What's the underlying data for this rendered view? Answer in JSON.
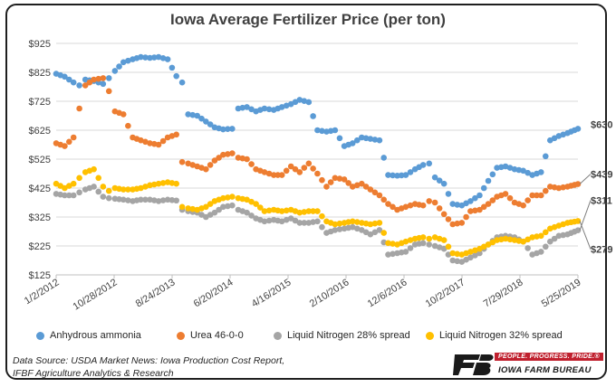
{
  "chart_data": {
    "type": "scatter",
    "title": "Iowa Average Fertilizer Price (per ton)",
    "xlabel": "",
    "ylabel": "",
    "x_tick_labels": [
      "1/2/2012",
      "10/28/2012",
      "8/24/2013",
      "6/20/2014",
      "4/16/2015",
      "2/10/2016",
      "12/6/2016",
      "10/2/2017",
      "7/29/2018",
      "5/25/2019"
    ],
    "x_ticks": [
      "2012-01-02",
      "2012-10-28",
      "2013-08-24",
      "2014-06-20",
      "2015-04-16",
      "2016-02-10",
      "2016-12-06",
      "2017-10-02",
      "2018-07-29",
      "2019-05-25"
    ],
    "xlim": [
      "2012-01-02",
      "2019-05-25"
    ],
    "y_tick_labels": [
      "$125",
      "$225",
      "$325",
      "$425",
      "$525",
      "$625",
      "$725",
      "$825",
      "$925"
    ],
    "ylim": [
      125,
      925
    ],
    "grid": true,
    "legend_position": "bottom",
    "end_labels": [
      "$630",
      "$439",
      "$311",
      "$279"
    ],
    "series": [
      {
        "name": "Anhydrous ammonia",
        "color": "#5b9bd5",
        "points": [
          [
            "2012-01-02",
            820
          ],
          [
            "2012-02-15",
            810
          ],
          [
            "2012-04-01",
            790
          ],
          [
            "2012-05-01",
            780
          ],
          [
            "2012-06-01",
            800
          ],
          [
            "2012-07-15",
            795
          ],
          [
            "2012-09-01",
            785
          ],
          [
            "2012-10-01",
            805
          ],
          [
            "2012-11-01",
            830
          ],
          [
            "2012-12-15",
            860
          ],
          [
            "2013-02-01",
            870
          ],
          [
            "2013-03-15",
            878
          ],
          [
            "2013-05-01",
            875
          ],
          [
            "2013-06-15",
            878
          ],
          [
            "2013-08-01",
            870
          ],
          [
            "2013-09-15",
            812
          ],
          [
            "2013-10-15",
            790
          ],
          [
            "2013-11-15",
            680
          ],
          [
            "2014-01-01",
            675
          ],
          [
            "2014-02-15",
            655
          ],
          [
            "2014-04-01",
            635
          ],
          [
            "2014-05-15",
            628
          ],
          [
            "2014-07-01",
            630
          ],
          [
            "2014-08-01",
            700
          ],
          [
            "2014-09-15",
            705
          ],
          [
            "2014-11-01",
            690
          ],
          [
            "2014-12-15",
            700
          ],
          [
            "2015-02-01",
            695
          ],
          [
            "2015-03-15",
            705
          ],
          [
            "2015-05-01",
            715
          ],
          [
            "2015-06-15",
            730
          ],
          [
            "2015-08-01",
            722
          ],
          [
            "2015-09-15",
            625
          ],
          [
            "2015-11-01",
            620
          ],
          [
            "2015-12-15",
            625
          ],
          [
            "2016-02-01",
            570
          ],
          [
            "2016-03-15",
            580
          ],
          [
            "2016-05-01",
            600
          ],
          [
            "2016-06-15",
            595
          ],
          [
            "2016-08-01",
            590
          ],
          [
            "2016-09-15",
            470
          ],
          [
            "2016-11-01",
            468
          ],
          [
            "2016-12-15",
            470
          ],
          [
            "2017-02-01",
            490
          ],
          [
            "2017-03-15",
            505
          ],
          [
            "2017-04-15",
            510
          ],
          [
            "2017-05-15",
            462
          ],
          [
            "2017-07-01",
            440
          ],
          [
            "2017-08-15",
            370
          ],
          [
            "2017-10-01",
            365
          ],
          [
            "2017-11-15",
            380
          ],
          [
            "2018-01-01",
            400
          ],
          [
            "2018-02-15",
            450
          ],
          [
            "2018-04-01",
            495
          ],
          [
            "2018-05-15",
            500
          ],
          [
            "2018-07-01",
            490
          ],
          [
            "2018-08-15",
            485
          ],
          [
            "2018-10-01",
            470
          ],
          [
            "2018-11-15",
            480
          ],
          [
            "2019-01-01",
            590
          ],
          [
            "2019-02-15",
            605
          ],
          [
            "2019-04-01",
            615
          ],
          [
            "2019-05-25",
            630
          ]
        ]
      },
      {
        "name": "Urea 46-0-0",
        "color": "#ed7d31",
        "points": [
          [
            "2012-01-02",
            580
          ],
          [
            "2012-02-15",
            570
          ],
          [
            "2012-04-01",
            600
          ],
          [
            "2012-05-01",
            700
          ],
          [
            "2012-06-01",
            780
          ],
          [
            "2012-07-15",
            800
          ],
          [
            "2012-09-01",
            805
          ],
          [
            "2012-10-01",
            760
          ],
          [
            "2012-11-01",
            690
          ],
          [
            "2012-12-15",
            680
          ],
          [
            "2013-02-01",
            600
          ],
          [
            "2013-03-15",
            590
          ],
          [
            "2013-05-01",
            580
          ],
          [
            "2013-06-15",
            575
          ],
          [
            "2013-08-01",
            600
          ],
          [
            "2013-09-15",
            610
          ],
          [
            "2013-10-15",
            515
          ],
          [
            "2013-11-15",
            510
          ],
          [
            "2014-01-01",
            500
          ],
          [
            "2014-02-15",
            490
          ],
          [
            "2014-04-01",
            520
          ],
          [
            "2014-05-15",
            540
          ],
          [
            "2014-07-01",
            545
          ],
          [
            "2014-08-01",
            530
          ],
          [
            "2014-09-15",
            525
          ],
          [
            "2014-11-01",
            490
          ],
          [
            "2014-12-15",
            480
          ],
          [
            "2015-02-01",
            470
          ],
          [
            "2015-03-15",
            470
          ],
          [
            "2015-05-01",
            500
          ],
          [
            "2015-06-15",
            480
          ],
          [
            "2015-08-01",
            510
          ],
          [
            "2015-09-15",
            475
          ],
          [
            "2015-11-01",
            430
          ],
          [
            "2015-12-15",
            460
          ],
          [
            "2016-02-01",
            455
          ],
          [
            "2016-03-15",
            430
          ],
          [
            "2016-05-01",
            440
          ],
          [
            "2016-06-15",
            420
          ],
          [
            "2016-08-01",
            400
          ],
          [
            "2016-09-15",
            370
          ],
          [
            "2016-11-01",
            350
          ],
          [
            "2016-12-15",
            360
          ],
          [
            "2017-02-01",
            370
          ],
          [
            "2017-03-15",
            365
          ],
          [
            "2017-04-15",
            380
          ],
          [
            "2017-05-15",
            375
          ],
          [
            "2017-07-01",
            335
          ],
          [
            "2017-08-15",
            300
          ],
          [
            "2017-10-01",
            305
          ],
          [
            "2017-11-15",
            345
          ],
          [
            "2018-01-01",
            350
          ],
          [
            "2018-02-15",
            370
          ],
          [
            "2018-04-01",
            395
          ],
          [
            "2018-05-15",
            405
          ],
          [
            "2018-07-01",
            375
          ],
          [
            "2018-08-15",
            365
          ],
          [
            "2018-10-01",
            400
          ],
          [
            "2018-11-15",
            400
          ],
          [
            "2019-01-01",
            430
          ],
          [
            "2019-02-15",
            425
          ],
          [
            "2019-04-01",
            430
          ],
          [
            "2019-05-25",
            439
          ]
        ]
      },
      {
        "name": "Liquid Nitrogen 28% spread",
        "color": "#a5a5a5",
        "points": [
          [
            "2012-01-02",
            405
          ],
          [
            "2012-02-15",
            400
          ],
          [
            "2012-04-01",
            400
          ],
          [
            "2012-05-01",
            410
          ],
          [
            "2012-06-01",
            420
          ],
          [
            "2012-07-15",
            430
          ],
          [
            "2012-09-01",
            395
          ],
          [
            "2012-10-01",
            390
          ],
          [
            "2012-11-01",
            388
          ],
          [
            "2012-12-15",
            385
          ],
          [
            "2013-02-01",
            380
          ],
          [
            "2013-03-15",
            385
          ],
          [
            "2013-05-01",
            385
          ],
          [
            "2013-06-15",
            380
          ],
          [
            "2013-08-01",
            385
          ],
          [
            "2013-09-15",
            382
          ],
          [
            "2013-10-15",
            350
          ],
          [
            "2013-11-15",
            345
          ],
          [
            "2014-01-01",
            340
          ],
          [
            "2014-02-15",
            325
          ],
          [
            "2014-04-01",
            340
          ],
          [
            "2014-05-15",
            360
          ],
          [
            "2014-07-01",
            365
          ],
          [
            "2014-08-01",
            350
          ],
          [
            "2014-09-15",
            340
          ],
          [
            "2014-11-01",
            320
          ],
          [
            "2014-12-15",
            310
          ],
          [
            "2015-02-01",
            315
          ],
          [
            "2015-03-15",
            310
          ],
          [
            "2015-05-01",
            320
          ],
          [
            "2015-06-15",
            305
          ],
          [
            "2015-08-01",
            305
          ],
          [
            "2015-09-15",
            310
          ],
          [
            "2015-11-01",
            270
          ],
          [
            "2015-12-15",
            280
          ],
          [
            "2016-02-01",
            285
          ],
          [
            "2016-03-15",
            290
          ],
          [
            "2016-05-01",
            280
          ],
          [
            "2016-06-15",
            265
          ],
          [
            "2016-08-01",
            280
          ],
          [
            "2016-09-15",
            195
          ],
          [
            "2016-11-01",
            200
          ],
          [
            "2016-12-15",
            205
          ],
          [
            "2017-02-01",
            230
          ],
          [
            "2017-03-15",
            235
          ],
          [
            "2017-04-15",
            230
          ],
          [
            "2017-05-15",
            225
          ],
          [
            "2017-07-01",
            215
          ],
          [
            "2017-08-15",
            175
          ],
          [
            "2017-10-01",
            170
          ],
          [
            "2017-11-15",
            185
          ],
          [
            "2018-01-01",
            200
          ],
          [
            "2018-02-15",
            230
          ],
          [
            "2018-04-01",
            255
          ],
          [
            "2018-05-15",
            260
          ],
          [
            "2018-07-01",
            255
          ],
          [
            "2018-08-15",
            240
          ],
          [
            "2018-10-01",
            195
          ],
          [
            "2018-11-15",
            205
          ],
          [
            "2019-01-01",
            240
          ],
          [
            "2019-02-15",
            260
          ],
          [
            "2019-04-01",
            265
          ],
          [
            "2019-05-25",
            279
          ]
        ]
      },
      {
        "name": "Liquid Nitrogen 32% spread",
        "color": "#ffc000",
        "points": [
          [
            "2012-01-02",
            440
          ],
          [
            "2012-02-15",
            425
          ],
          [
            "2012-04-01",
            440
          ],
          [
            "2012-05-01",
            460
          ],
          [
            "2012-06-01",
            480
          ],
          [
            "2012-07-15",
            490
          ],
          [
            "2012-09-01",
            430
          ],
          [
            "2012-10-01",
            415
          ],
          [
            "2012-11-01",
            425
          ],
          [
            "2012-12-15",
            420
          ],
          [
            "2013-02-01",
            420
          ],
          [
            "2013-03-15",
            425
          ],
          [
            "2013-05-01",
            435
          ],
          [
            "2013-06-15",
            440
          ],
          [
            "2013-08-01",
            445
          ],
          [
            "2013-09-15",
            440
          ],
          [
            "2013-10-15",
            360
          ],
          [
            "2013-11-15",
            355
          ],
          [
            "2014-01-01",
            350
          ],
          [
            "2014-02-15",
            360
          ],
          [
            "2014-04-01",
            380
          ],
          [
            "2014-05-15",
            390
          ],
          [
            "2014-07-01",
            395
          ],
          [
            "2014-08-01",
            390
          ],
          [
            "2014-09-15",
            385
          ],
          [
            "2014-11-01",
            370
          ],
          [
            "2014-12-15",
            345
          ],
          [
            "2015-02-01",
            350
          ],
          [
            "2015-03-15",
            345
          ],
          [
            "2015-05-01",
            350
          ],
          [
            "2015-06-15",
            340
          ],
          [
            "2015-08-01",
            345
          ],
          [
            "2015-09-15",
            345
          ],
          [
            "2015-11-01",
            310
          ],
          [
            "2015-12-15",
            300
          ],
          [
            "2016-02-01",
            305
          ],
          [
            "2016-03-15",
            310
          ],
          [
            "2016-05-01",
            305
          ],
          [
            "2016-06-15",
            300
          ],
          [
            "2016-08-01",
            305
          ],
          [
            "2016-09-15",
            235
          ],
          [
            "2016-11-01",
            230
          ],
          [
            "2016-12-15",
            240
          ],
          [
            "2017-02-01",
            250
          ],
          [
            "2017-03-15",
            255
          ],
          [
            "2017-04-15",
            250
          ],
          [
            "2017-05-15",
            255
          ],
          [
            "2017-07-01",
            245
          ],
          [
            "2017-08-15",
            200
          ],
          [
            "2017-10-01",
            195
          ],
          [
            "2017-11-15",
            205
          ],
          [
            "2018-01-01",
            215
          ],
          [
            "2018-02-15",
            230
          ],
          [
            "2018-04-01",
            245
          ],
          [
            "2018-05-15",
            250
          ],
          [
            "2018-07-01",
            245
          ],
          [
            "2018-08-15",
            240
          ],
          [
            "2018-10-01",
            255
          ],
          [
            "2018-11-15",
            260
          ],
          [
            "2019-01-01",
            285
          ],
          [
            "2019-02-15",
            295
          ],
          [
            "2019-04-01",
            305
          ],
          [
            "2019-05-25",
            311
          ]
        ]
      }
    ]
  },
  "footer": {
    "source_line1": "Data Source: USDA Market News: Iowa Production Cost Report,",
    "source_line2": "IFBF Agriculture Analytics & Research",
    "logo_tagline": "PEOPLE. PROGRESS. PRIDE.®",
    "logo_name": "IOWA FARM BUREAU"
  }
}
